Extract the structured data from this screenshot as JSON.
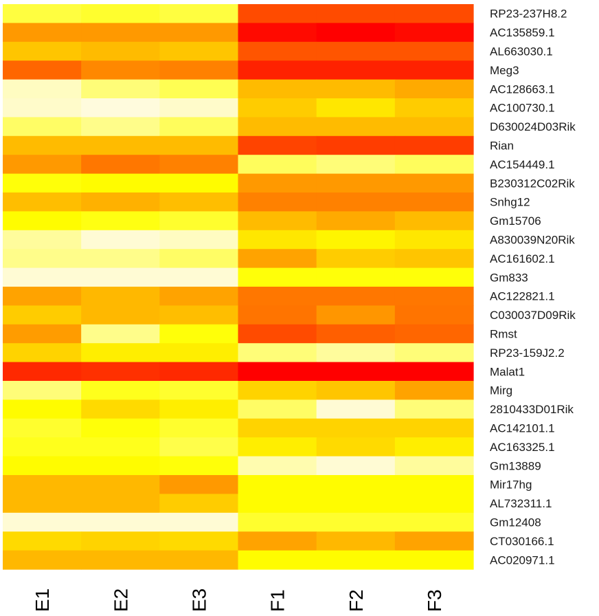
{
  "chart_data": {
    "type": "heatmap",
    "columns": [
      "E1",
      "E2",
      "E3",
      "F1",
      "F2",
      "F3"
    ],
    "rows": [
      "RP23-237H8.2",
      "AC135859.1",
      "AL663030.1",
      "Meg3",
      "AC128663.1",
      "AC100730.1",
      "D630024D03Rik",
      "Rian",
      "AC154449.1",
      "B230312C02Rik",
      "Snhg12",
      "Gm15706",
      "A830039N20Rik",
      "AC161602.1",
      "Gm833",
      "AC122821.1",
      "C030037D09Rik",
      "Rmst",
      "RP23-159J2.2",
      "Malat1",
      "Mirg",
      "2810433D01Rik",
      "AC142101.1",
      "AC163325.1",
      "Gm13889",
      "Mir17hg",
      "AL732311.1",
      "Gm12408",
      "CT030166.1",
      "AC020971.1"
    ],
    "values": [
      [
        0.18,
        0.2,
        0.18,
        0.78,
        0.78,
        0.78
      ],
      [
        0.55,
        0.55,
        0.55,
        0.97,
        1.0,
        0.97
      ],
      [
        0.42,
        0.45,
        0.42,
        0.75,
        0.75,
        0.75
      ],
      [
        0.7,
        0.6,
        0.62,
        0.9,
        0.9,
        0.9
      ],
      [
        0.04,
        0.12,
        0.16,
        0.45,
        0.45,
        0.5
      ],
      [
        0.03,
        0.01,
        0.03,
        0.4,
        0.32,
        0.4
      ],
      [
        0.14,
        0.1,
        0.15,
        0.45,
        0.45,
        0.45
      ],
      [
        0.45,
        0.45,
        0.45,
        0.8,
        0.82,
        0.82
      ],
      [
        0.55,
        0.65,
        0.62,
        0.15,
        0.12,
        0.15
      ],
      [
        0.24,
        0.26,
        0.26,
        0.55,
        0.55,
        0.55
      ],
      [
        0.44,
        0.48,
        0.44,
        0.62,
        0.62,
        0.62
      ],
      [
        0.26,
        0.23,
        0.2,
        0.45,
        0.5,
        0.45
      ],
      [
        0.08,
        0.02,
        0.04,
        0.32,
        0.28,
        0.32
      ],
      [
        0.1,
        0.1,
        0.14,
        0.52,
        0.4,
        0.42
      ],
      [
        0.02,
        0.02,
        0.02,
        0.24,
        0.24,
        0.24
      ],
      [
        0.52,
        0.46,
        0.52,
        0.65,
        0.65,
        0.65
      ],
      [
        0.4,
        0.46,
        0.44,
        0.66,
        0.56,
        0.66
      ],
      [
        0.54,
        0.1,
        0.24,
        0.78,
        0.72,
        0.7
      ],
      [
        0.38,
        0.3,
        0.3,
        0.12,
        0.08,
        0.12
      ],
      [
        0.88,
        0.86,
        0.88,
        1.0,
        1.0,
        1.0
      ],
      [
        0.12,
        0.22,
        0.2,
        0.38,
        0.42,
        0.52
      ],
      [
        0.26,
        0.36,
        0.3,
        0.14,
        0.02,
        0.12
      ],
      [
        0.2,
        0.24,
        0.2,
        0.38,
        0.38,
        0.38
      ],
      [
        0.22,
        0.22,
        0.17,
        0.3,
        0.36,
        0.3
      ],
      [
        0.26,
        0.26,
        0.24,
        0.06,
        0.02,
        0.08
      ],
      [
        0.46,
        0.46,
        0.55,
        0.26,
        0.26,
        0.26
      ],
      [
        0.46,
        0.46,
        0.4,
        0.26,
        0.26,
        0.26
      ],
      [
        0.02,
        0.02,
        0.02,
        0.2,
        0.2,
        0.2
      ],
      [
        0.36,
        0.38,
        0.36,
        0.52,
        0.46,
        0.52
      ],
      [
        0.46,
        0.46,
        0.46,
        0.26,
        0.26,
        0.26
      ]
    ],
    "color_scale": {
      "low": "#fffbe6",
      "mid": "#ffff00",
      "high": "#ff0000"
    },
    "legend": "none",
    "title": ""
  }
}
